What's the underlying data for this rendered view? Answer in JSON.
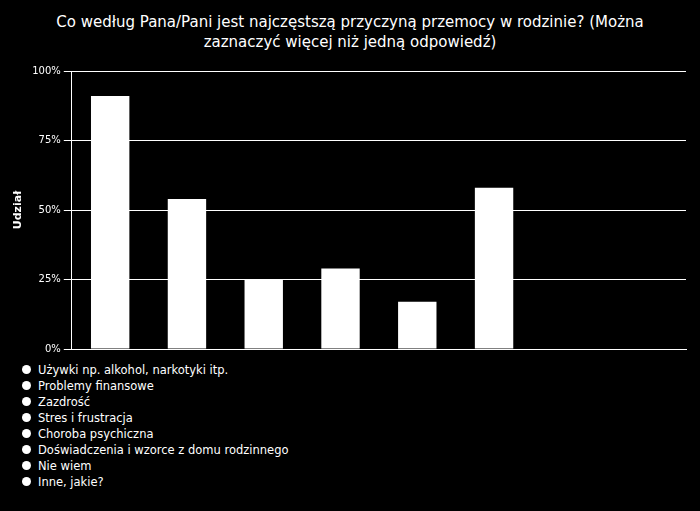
{
  "chart_data": {
    "type": "bar",
    "title": "Co według Pana/Pani jest najczęstszą przyczyną przemocy w rodzinie? (Można zaznaczyć więcej niż jedną odpowiedź)",
    "y_label": "Udział",
    "categories": [
      "Używki np. alkohol, narkotyki itp.",
      "Problemy finansowe",
      "Zazdrość",
      "Stres i frustracja",
      "Choroba psychiczna",
      "Doświadczenia i wzorce z domu rodzinnego",
      "Nie wiem",
      "Inne, jakie?"
    ],
    "values": [
      91,
      54,
      25,
      29,
      17,
      58,
      0,
      0
    ],
    "color": "#ffffff",
    "ylim": [
      0,
      100
    ],
    "yticks": [
      {
        "value": 0,
        "label": "0%"
      },
      {
        "value": 25,
        "label": "25%"
      },
      {
        "value": 50,
        "label": "50%"
      },
      {
        "value": 75,
        "label": "75%"
      },
      {
        "value": 100,
        "label": "100%"
      }
    ],
    "grid": true,
    "tick_labels": "y"
  }
}
